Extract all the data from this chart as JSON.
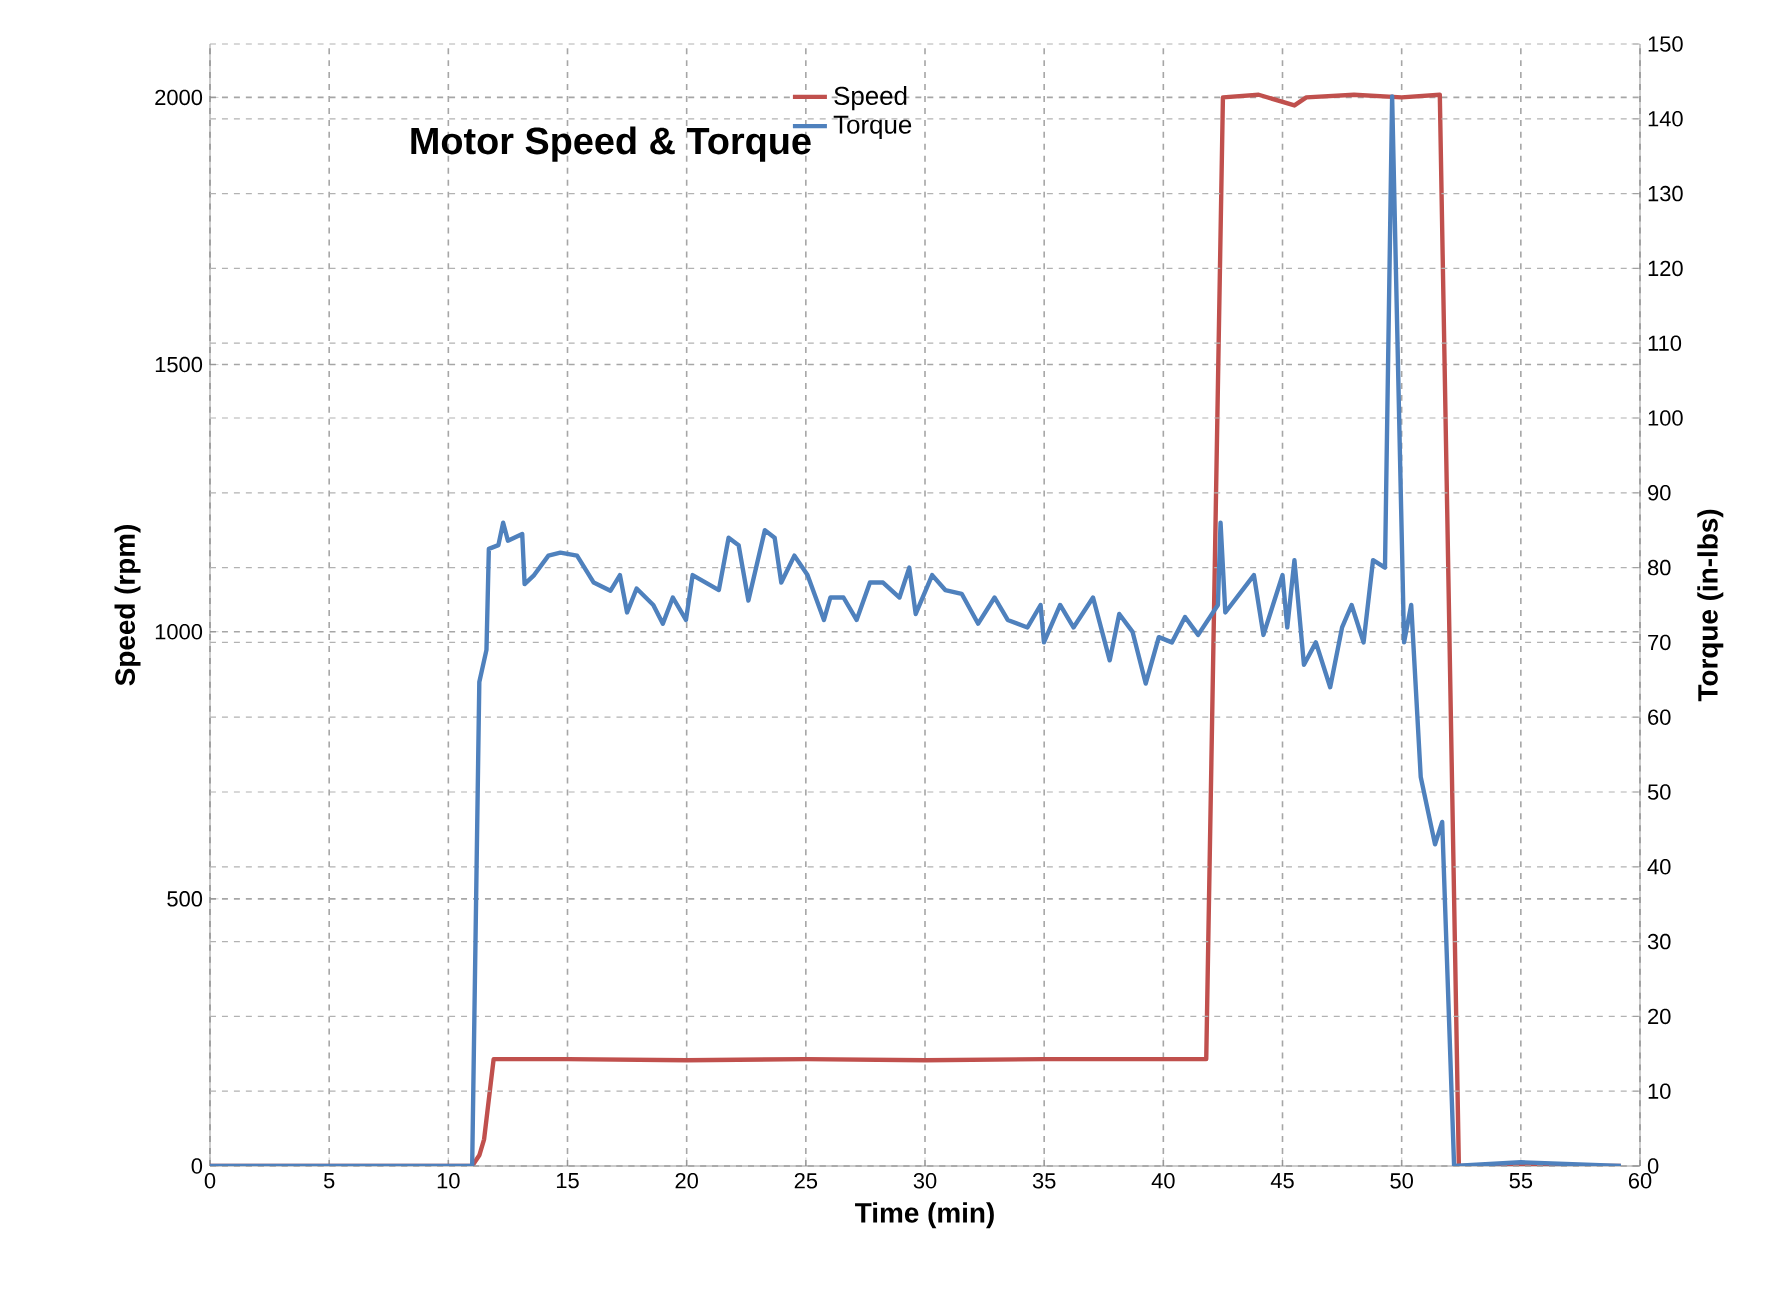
{
  "chart_data": {
    "type": "line",
    "title": "Motor Speed & Torque",
    "xlabel": "Time (min)",
    "ylabel": "Speed (rpm)",
    "y2label": "Torque (in-lbs)",
    "xlim": [
      0,
      60
    ],
    "xticks": [
      0,
      5,
      10,
      15,
      20,
      25,
      30,
      35,
      40,
      45,
      50,
      55,
      60
    ],
    "ylim": [
      0,
      2100
    ],
    "yticks": [
      0,
      500,
      1000,
      1500,
      2000
    ],
    "y2lim": [
      0,
      150
    ],
    "y2ticks": [
      0,
      10,
      20,
      30,
      40,
      50,
      60,
      70,
      80,
      90,
      100,
      110,
      120,
      130,
      140,
      150
    ],
    "grid": true,
    "legend": "top",
    "series": [
      {
        "name": "Speed",
        "color": "#c0504d",
        "axis": "y",
        "x": [
          0,
          11.0,
          11.3,
          11.5,
          11.9,
          15,
          20,
          25,
          30,
          35,
          40,
          41.8,
          42.5,
          44,
          45.5,
          46,
          48,
          50,
          51.6,
          52.4,
          55,
          59.2
        ],
        "values": [
          0,
          0,
          20,
          50,
          200,
          200,
          198,
          200,
          198,
          200,
          200,
          200,
          2000,
          2005,
          1985,
          2000,
          2005,
          2000,
          2005,
          0,
          0,
          0
        ]
      },
      {
        "name": "Torque",
        "color": "#4f81bd",
        "axis": "y2",
        "x": [
          0,
          11.0,
          11.3,
          11.6,
          11.7,
          12.1,
          12.3,
          12.5,
          13.1,
          13.2,
          13.6,
          14.2,
          14.7,
          15.4,
          16.1,
          16.8,
          17.2,
          17.5,
          17.9,
          18.6,
          19.0,
          19.42,
          19.97,
          20.25,
          20.8,
          21.35,
          21.76,
          22.18,
          22.59,
          23.28,
          23.69,
          23.97,
          24.52,
          25.07,
          25.76,
          26.03,
          26.58,
          27.13,
          27.69,
          28.24,
          28.93,
          29.34,
          29.61,
          30.3,
          30.85,
          31.54,
          32.23,
          32.92,
          33.47,
          34.3,
          34.85,
          34.99,
          35.67,
          36.23,
          37.05,
          37.75,
          38.15,
          38.71,
          39.26,
          39.81,
          40.36,
          40.91,
          41.46,
          42.29,
          42.4,
          42.6,
          43.8,
          44.2,
          45,
          45.2,
          45.5,
          45.9,
          46.4,
          47,
          47.5,
          47.9,
          48.4,
          48.8,
          49.3,
          49.6,
          50.1,
          50.4,
          50.8,
          51.4,
          51.7,
          52.2,
          55,
          59.2
        ],
        "values": [
          0,
          0,
          64.7,
          69,
          82.5,
          83,
          86,
          83.6,
          84.5,
          77.8,
          79,
          81.6,
          82,
          81.6,
          78,
          76.9,
          79,
          74,
          77.2,
          75,
          72.5,
          76,
          73,
          79,
          78,
          77,
          84,
          83,
          75.6,
          85,
          84,
          78,
          81.6,
          79,
          73,
          76,
          76,
          73,
          78,
          78,
          76,
          80,
          73.8,
          79,
          77,
          76.5,
          72.5,
          76,
          73,
          72,
          75,
          70,
          75,
          72,
          76,
          67.6,
          73.8,
          71.4,
          64.5,
          70.7,
          70,
          73.4,
          71,
          75,
          86,
          74,
          79,
          71,
          79,
          72,
          81,
          67,
          70,
          64,
          72,
          75,
          70,
          81,
          80,
          143,
          70,
          75,
          52,
          43,
          46,
          0,
          0.5,
          0
        ]
      }
    ]
  }
}
